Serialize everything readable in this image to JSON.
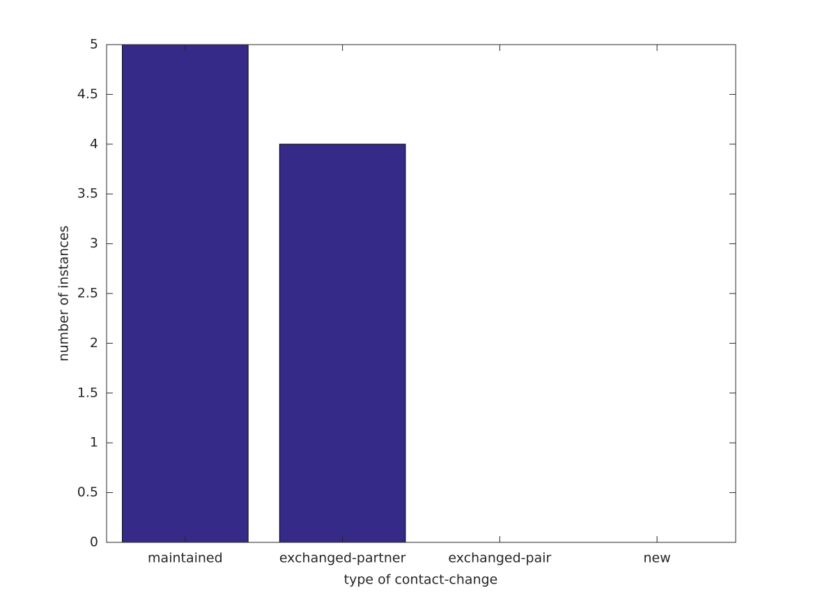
{
  "chart_data": {
    "type": "bar",
    "x_label": "type of contact-change",
    "y_label": "number of instances",
    "categories": [
      "maintained",
      "exchanged-partner",
      "exchanged-pair",
      "new"
    ],
    "values": [
      5,
      4,
      0,
      0
    ],
    "color": "#352a87",
    "ylim": [
      0,
      5
    ],
    "yticks": [
      0,
      0.5,
      1,
      1.5,
      2,
      2.5,
      3,
      3.5,
      4,
      4.5,
      5
    ],
    "grid": false
  }
}
